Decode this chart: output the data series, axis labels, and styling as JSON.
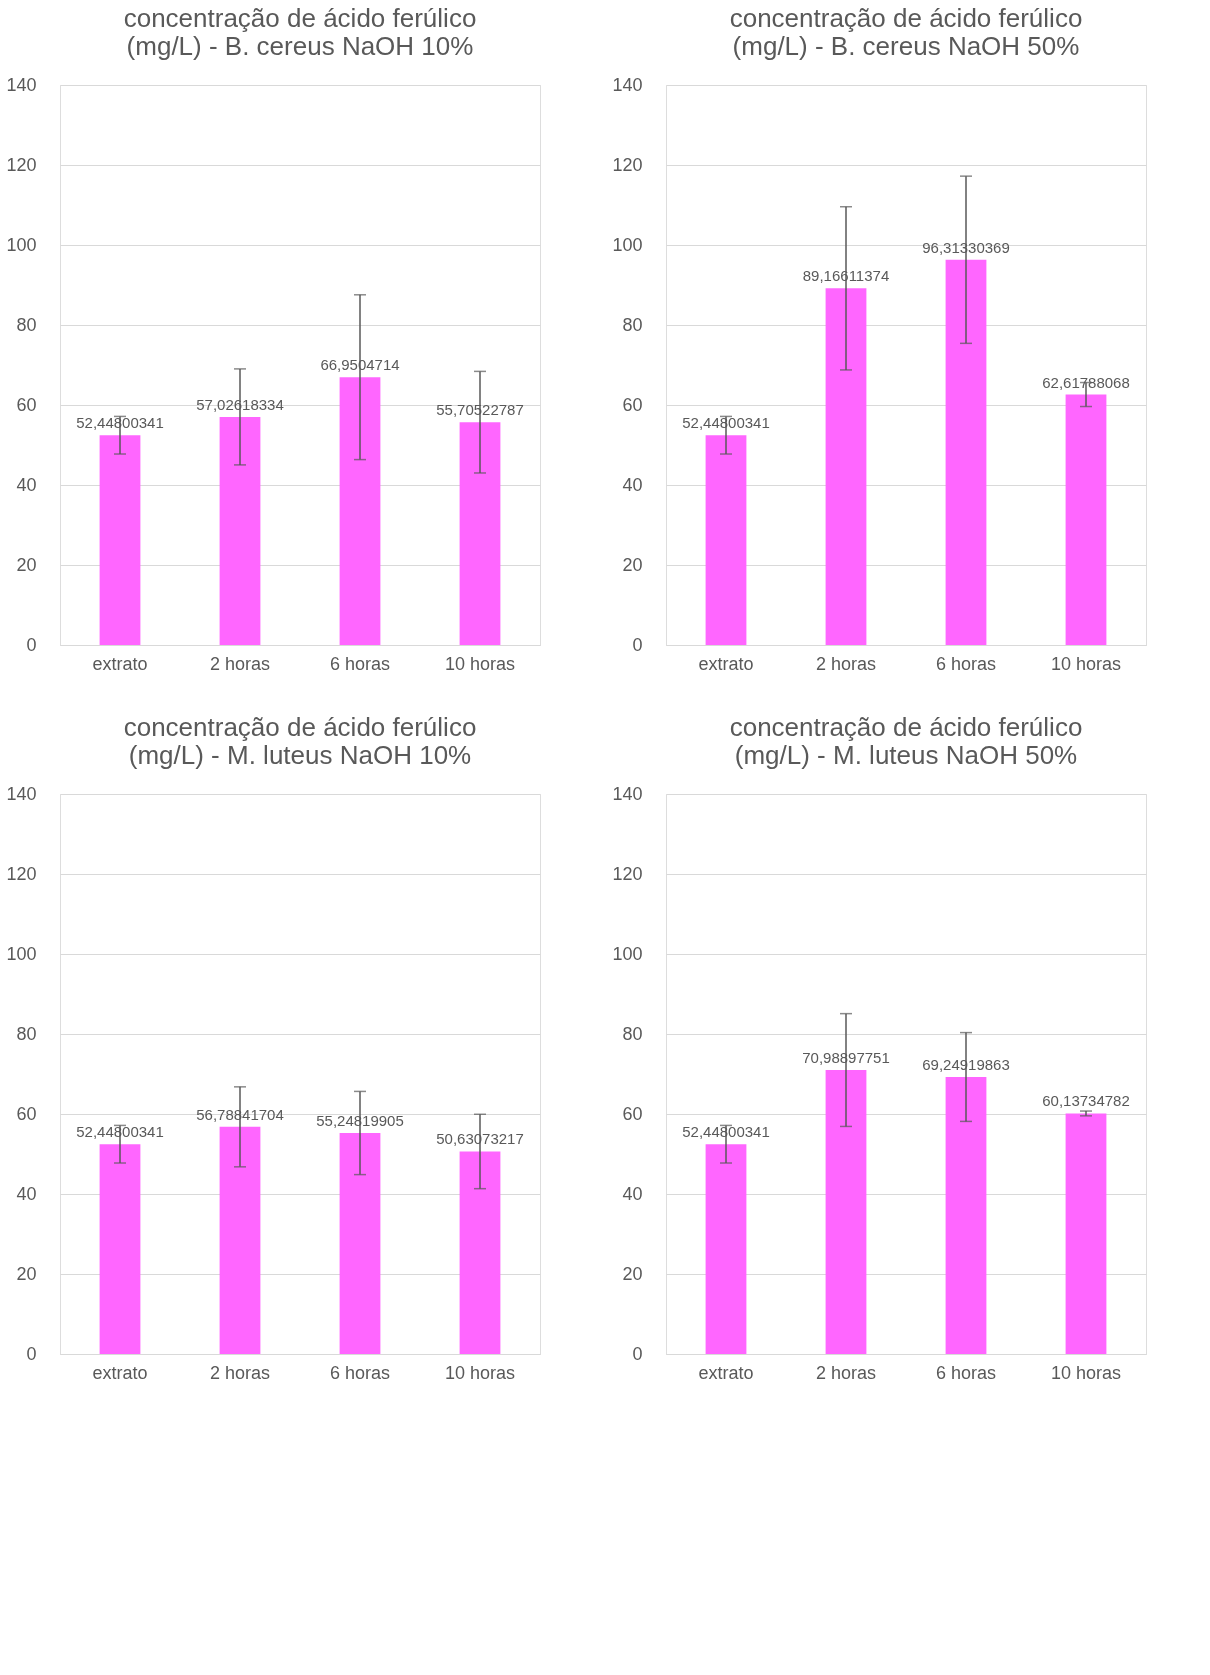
{
  "chart_data": [
    {
      "type": "bar",
      "title": "concentração de ácido ferúlico (mg/L) - B. cereus NaOH 10%",
      "categories": [
        "extrato",
        "2 horas",
        "6 horas",
        "10 horas"
      ],
      "color": "#ff66ff",
      "values": [
        52.44800341,
        57.02618334,
        66.9504714,
        55.70522787
      ],
      "errors": [
        4.7,
        12.0,
        20.6,
        12.7
      ],
      "value_labels": [
        "52,44800341",
        "57,02618334",
        "66,9504714",
        "55,70522787"
      ],
      "ylim": [
        0,
        140
      ],
      "yticks": [
        0,
        20,
        40,
        60,
        80,
        100,
        120,
        140
      ],
      "grid": "y",
      "legend": false
    },
    {
      "type": "bar",
      "title": "concentração de ácido ferúlico (mg/L) - B. cereus NaOH 50%",
      "categories": [
        "extrato",
        "2 horas",
        "6 horas",
        "10 horas"
      ],
      "color": "#ff66ff",
      "values": [
        52.44800341,
        89.16611374,
        96.31330369,
        62.61788068
      ],
      "errors": [
        4.7,
        20.4,
        20.9,
        3.0
      ],
      "value_labels": [
        "52,44800341",
        "89,16611374",
        "96,31330369",
        "62,61788068"
      ],
      "ylim": [
        0,
        140
      ],
      "yticks": [
        0,
        20,
        40,
        60,
        80,
        100,
        120,
        140
      ],
      "grid": "y",
      "legend": false
    },
    {
      "type": "bar",
      "title": "concentração de ácido ferúlico (mg/L) - M. luteus NaOH 10%",
      "categories": [
        "extrato",
        "2 horas",
        "6 horas",
        "10 horas"
      ],
      "color": "#ff66ff",
      "values": [
        52.44800341,
        56.78841704,
        55.24819905,
        50.63073217
      ],
      "errors": [
        4.7,
        10.0,
        10.4,
        9.3
      ],
      "value_labels": [
        "52,44800341",
        "56,78841704",
        "55,24819905",
        "50,63073217"
      ],
      "ylim": [
        0,
        140
      ],
      "yticks": [
        0,
        20,
        40,
        60,
        80,
        100,
        120,
        140
      ],
      "grid": "y",
      "legend": false
    },
    {
      "type": "bar",
      "title": "concentração de ácido ferúlico (mg/L) - M. luteus NaOH 50%",
      "categories": [
        "extrato",
        "2 horas",
        "6 horas",
        "10 horas"
      ],
      "color": "#ff66ff",
      "values": [
        52.44800341,
        70.98897751,
        69.24919863,
        60.13734782
      ],
      "errors": [
        4.7,
        14.1,
        11.1,
        0.6
      ],
      "value_labels": [
        "52,44800341",
        "70,98897751",
        "69,24919863",
        "60,13734782"
      ],
      "ylim": [
        0,
        140
      ],
      "yticks": [
        0,
        20,
        40,
        60,
        80,
        100,
        120,
        140
      ],
      "grid": "y",
      "legend": false
    }
  ]
}
